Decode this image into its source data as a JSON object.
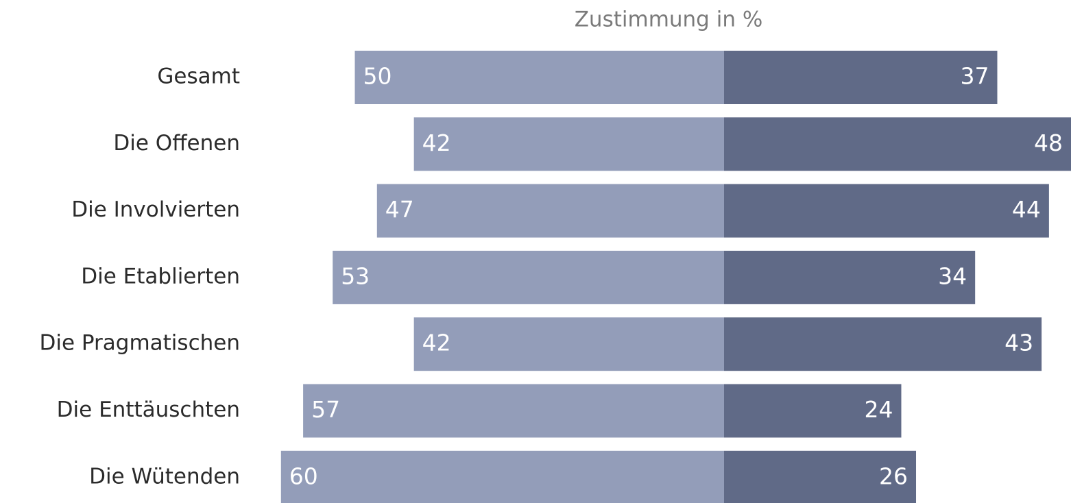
{
  "chart_data": {
    "type": "diverging-bar",
    "title": "Zustimmung in %",
    "categories": [
      "Gesamt",
      "Die Offenen",
      "Die Involvierten",
      "Die Etablierten",
      "Die Pragmatischen",
      "Die Enttäuschten",
      "Die Wütenden"
    ],
    "series": [
      {
        "color": "#939db9",
        "values": [
          50,
          42,
          47,
          53,
          42,
          57,
          60
        ]
      },
      {
        "color": "#606a87",
        "values": [
          37,
          48,
          44,
          34,
          43,
          24,
          26
        ]
      }
    ]
  }
}
